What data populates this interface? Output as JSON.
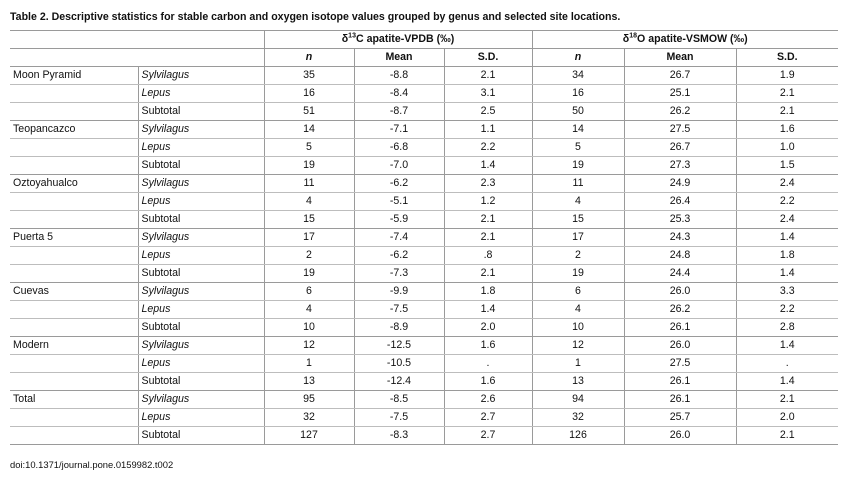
{
  "caption": "Table 2.  Descriptive statistics for stable carbon and oxygen isotope values grouped by genus and selected site locations.",
  "headers": {
    "group1_delta": "δ",
    "group1_sup": "13",
    "group1_rest": "C apatite-VPDB (‰)",
    "group2_delta": "δ",
    "group2_sup": "18",
    "group2_rest": "O apatite-VSMOW (‰)",
    "columns": [
      "n",
      "Mean",
      "S.D.",
      "n",
      "Mean",
      "S.D."
    ]
  },
  "sites": [
    {
      "name": "Moon Pyramid",
      "rows": [
        {
          "genus": "Sylvilagus",
          "italic": true,
          "c_n": "35",
          "c_mean": "-8.8",
          "c_sd": "2.1",
          "o_n": "34",
          "o_mean": "26.7",
          "o_sd": "1.9"
        },
        {
          "genus": "Lepus",
          "italic": true,
          "c_n": "16",
          "c_mean": "-8.4",
          "c_sd": "3.1",
          "o_n": "16",
          "o_mean": "25.1",
          "o_sd": "2.1"
        },
        {
          "genus": "Subtotal",
          "italic": false,
          "c_n": "51",
          "c_mean": "-8.7",
          "c_sd": "2.5",
          "o_n": "50",
          "o_mean": "26.2",
          "o_sd": "2.1"
        }
      ]
    },
    {
      "name": "Teopancazco",
      "rows": [
        {
          "genus": "Sylvilagus",
          "italic": true,
          "c_n": "14",
          "c_mean": "-7.1",
          "c_sd": "1.1",
          "o_n": "14",
          "o_mean": "27.5",
          "o_sd": "1.6"
        },
        {
          "genus": "Lepus",
          "italic": true,
          "c_n": "5",
          "c_mean": "-6.8",
          "c_sd": "2.2",
          "o_n": "5",
          "o_mean": "26.7",
          "o_sd": "1.0"
        },
        {
          "genus": "Subtotal",
          "italic": false,
          "c_n": "19",
          "c_mean": "-7.0",
          "c_sd": "1.4",
          "o_n": "19",
          "o_mean": "27.3",
          "o_sd": "1.5"
        }
      ]
    },
    {
      "name": "Oztoyahualco",
      "rows": [
        {
          "genus": "Sylvilagus",
          "italic": true,
          "c_n": "11",
          "c_mean": "-6.2",
          "c_sd": "2.3",
          "o_n": "11",
          "o_mean": "24.9",
          "o_sd": "2.4"
        },
        {
          "genus": "Lepus",
          "italic": true,
          "c_n": "4",
          "c_mean": "-5.1",
          "c_sd": "1.2",
          "o_n": "4",
          "o_mean": "26.4",
          "o_sd": "2.2"
        },
        {
          "genus": "Subtotal",
          "italic": false,
          "c_n": "15",
          "c_mean": "-5.9",
          "c_sd": "2.1",
          "o_n": "15",
          "o_mean": "25.3",
          "o_sd": "2.4"
        }
      ]
    },
    {
      "name": "Puerta 5",
      "rows": [
        {
          "genus": "Sylvilagus",
          "italic": true,
          "c_n": "17",
          "c_mean": "-7.4",
          "c_sd": "2.1",
          "o_n": "17",
          "o_mean": "24.3",
          "o_sd": "1.4"
        },
        {
          "genus": "Lepus",
          "italic": true,
          "c_n": "2",
          "c_mean": "-6.2",
          "c_sd": ".8",
          "o_n": "2",
          "o_mean": "24.8",
          "o_sd": "1.8"
        },
        {
          "genus": "Subtotal",
          "italic": false,
          "c_n": "19",
          "c_mean": "-7.3",
          "c_sd": "2.1",
          "o_n": "19",
          "o_mean": "24.4",
          "o_sd": "1.4"
        }
      ]
    },
    {
      "name": "Cuevas",
      "rows": [
        {
          "genus": "Sylvilagus",
          "italic": true,
          "c_n": "6",
          "c_mean": "-9.9",
          "c_sd": "1.8",
          "o_n": "6",
          "o_mean": "26.0",
          "o_sd": "3.3"
        },
        {
          "genus": "Lepus",
          "italic": true,
          "c_n": "4",
          "c_mean": "-7.5",
          "c_sd": "1.4",
          "o_n": "4",
          "o_mean": "26.2",
          "o_sd": "2.2"
        },
        {
          "genus": "Subtotal",
          "italic": false,
          "c_n": "10",
          "c_mean": "-8.9",
          "c_sd": "2.0",
          "o_n": "10",
          "o_mean": "26.1",
          "o_sd": "2.8"
        }
      ]
    },
    {
      "name": "Modern",
      "rows": [
        {
          "genus": "Sylvilagus",
          "italic": true,
          "c_n": "12",
          "c_mean": "-12.5",
          "c_sd": "1.6",
          "o_n": "12",
          "o_mean": "26.0",
          "o_sd": "1.4"
        },
        {
          "genus": "Lepus",
          "italic": true,
          "c_n": "1",
          "c_mean": "-10.5",
          "c_sd": ".",
          "o_n": "1",
          "o_mean": "27.5",
          "o_sd": "."
        },
        {
          "genus": "Subtotal",
          "italic": false,
          "c_n": "13",
          "c_mean": "-12.4",
          "c_sd": "1.6",
          "o_n": "13",
          "o_mean": "26.1",
          "o_sd": "1.4"
        }
      ]
    },
    {
      "name": "Total",
      "rows": [
        {
          "genus": "Sylvilagus",
          "italic": true,
          "c_n": "95",
          "c_mean": "-8.5",
          "c_sd": "2.6",
          "o_n": "94",
          "o_mean": "26.1",
          "o_sd": "2.1"
        },
        {
          "genus": "Lepus",
          "italic": true,
          "c_n": "32",
          "c_mean": "-7.5",
          "c_sd": "2.7",
          "o_n": "32",
          "o_mean": "25.7",
          "o_sd": "2.0"
        },
        {
          "genus": "Subtotal",
          "italic": false,
          "c_n": "127",
          "c_mean": "-8.3",
          "c_sd": "2.7",
          "o_n": "126",
          "o_mean": "26.0",
          "o_sd": "2.1"
        }
      ]
    }
  ],
  "doi": "doi:10.1371/journal.pone.0159982.t002"
}
